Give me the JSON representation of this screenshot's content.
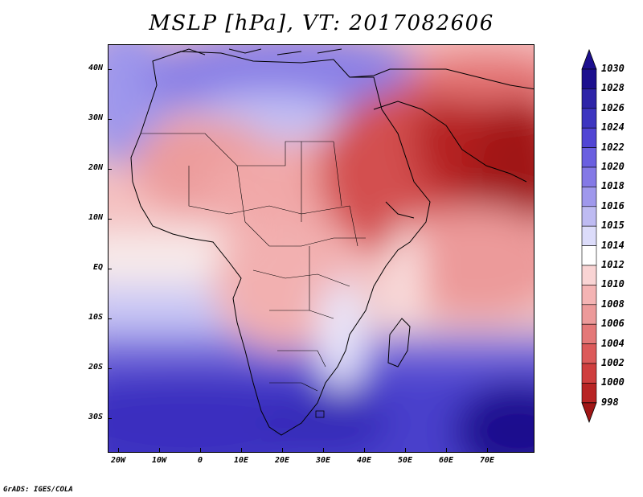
{
  "title": "MSLP [hPa], VT: 2017082606",
  "credit": "GrADS: IGES/COLA",
  "map": {
    "lat_labels": [
      "40N",
      "30N",
      "20N",
      "10N",
      "EQ",
      "10S",
      "20S",
      "30S"
    ],
    "lon_labels": [
      "20W",
      "10W",
      "0",
      "10E",
      "20E",
      "30E",
      "40E",
      "50E",
      "60E",
      "70E"
    ]
  },
  "colorbar": {
    "levels": [
      "1030",
      "1028",
      "1026",
      "1024",
      "1022",
      "1020",
      "1018",
      "1016",
      "1015",
      "1014",
      "1012",
      "1010",
      "1008",
      "1006",
      "1004",
      "1002",
      "1000",
      "998"
    ],
    "colors": [
      "#1c0f8e",
      "#2e24a8",
      "#3d35c0",
      "#5145d4",
      "#6a5fe0",
      "#8479e6",
      "#9f98ec",
      "#bebbf2",
      "#dcdcfa",
      "#ffffff",
      "#f9d4d4",
      "#f4b4b4",
      "#ec9a9a",
      "#e47878",
      "#dc5a5a",
      "#cf3e3e",
      "#b82424",
      "#a01616"
    ]
  }
}
